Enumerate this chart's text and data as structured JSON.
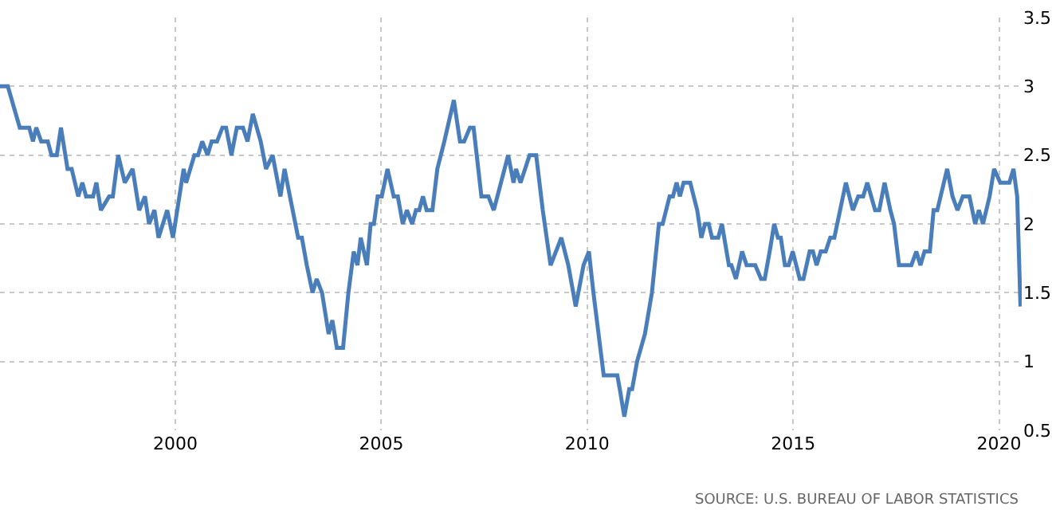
{
  "chart_data": {
    "type": "line",
    "x": [
      1995.74,
      1995.93,
      1996.22,
      1996.45,
      1996.54,
      1996.62,
      1996.74,
      1996.9,
      1996.99,
      1997.12,
      1997.22,
      1997.38,
      1997.48,
      1997.64,
      1997.74,
      1997.83,
      1998.0,
      1998.08,
      1998.19,
      1998.39,
      1998.48,
      1998.61,
      1998.77,
      1998.96,
      1999.12,
      1999.26,
      1999.36,
      1999.49,
      1999.59,
      1999.8,
      1999.94,
      2000.2,
      2000.26,
      2000.46,
      2000.55,
      2000.65,
      2000.78,
      2000.88,
      2001.01,
      2001.14,
      2001.23,
      2001.36,
      2001.49,
      2001.64,
      2001.75,
      2001.88,
      2002.07,
      2002.2,
      2002.36,
      2002.55,
      2002.65,
      2002.78,
      2002.98,
      2003.07,
      2003.19,
      2003.33,
      2003.43,
      2003.56,
      2003.72,
      2003.81,
      2003.92,
      2004.07,
      2004.2,
      2004.33,
      2004.42,
      2004.5,
      2004.65,
      2004.74,
      2004.82,
      2004.91,
      2005.01,
      2005.15,
      2005.3,
      2005.4,
      2005.52,
      2005.62,
      2005.75,
      2005.84,
      2005.92,
      2006.01,
      2006.1,
      2006.24,
      2006.36,
      2006.53,
      2006.76,
      2006.91,
      2007.01,
      2007.15,
      2007.24,
      2007.43,
      2007.6,
      2007.73,
      2008.08,
      2008.21,
      2008.27,
      2008.38,
      2008.6,
      2008.76,
      2008.92,
      2009.11,
      2009.24,
      2009.37,
      2009.54,
      2009.72,
      2009.91,
      2010.04,
      2010.15,
      2010.4,
      2010.73,
      2010.79,
      2010.9,
      2011.02,
      2011.09,
      2011.21,
      2011.4,
      2011.57,
      2011.74,
      2011.83,
      2012.0,
      2012.08,
      2012.17,
      2012.25,
      2012.34,
      2012.5,
      2012.67,
      2012.77,
      2012.86,
      2012.95,
      2013.03,
      2013.18,
      2013.27,
      2013.44,
      2013.5,
      2013.61,
      2013.76,
      2013.87,
      2014.08,
      2014.22,
      2014.31,
      2014.43,
      2014.54,
      2014.63,
      2014.7,
      2014.8,
      2014.89,
      2014.99,
      2015.16,
      2015.25,
      2015.4,
      2015.48,
      2015.57,
      2015.67,
      2015.79,
      2015.9,
      2016.0,
      2016.28,
      2016.45,
      2016.58,
      2016.7,
      2016.8,
      2016.99,
      2017.09,
      2017.22,
      2017.36,
      2017.45,
      2017.57,
      2017.87,
      2017.99,
      2018.09,
      2018.19,
      2018.32,
      2018.41,
      2018.5,
      2018.74,
      2018.87,
      2018.99,
      2019.12,
      2019.28,
      2019.42,
      2019.51,
      2019.61,
      2019.77,
      2019.88,
      2020.03,
      2020.25,
      2020.35,
      2020.44,
      2020.52
    ],
    "series": [
      {
        "color": "#4a7ebb",
        "values": [
          3.0,
          3.0,
          2.7,
          2.7,
          2.6,
          2.7,
          2.6,
          2.6,
          2.5,
          2.5,
          2.7,
          2.4,
          2.4,
          2.2,
          2.3,
          2.2,
          2.2,
          2.3,
          2.1,
          2.2,
          2.2,
          2.5,
          2.3,
          2.4,
          2.1,
          2.2,
          2.0,
          2.1,
          1.9,
          2.1,
          1.9,
          2.4,
          2.3,
          2.5,
          2.5,
          2.6,
          2.5,
          2.6,
          2.6,
          2.7,
          2.7,
          2.5,
          2.7,
          2.7,
          2.6,
          2.8,
          2.6,
          2.4,
          2.5,
          2.2,
          2.4,
          2.2,
          1.9,
          1.9,
          1.7,
          1.5,
          1.6,
          1.5,
          1.2,
          1.3,
          1.1,
          1.1,
          1.5,
          1.8,
          1.7,
          1.9,
          1.7,
          2.0,
          2.0,
          2.2,
          2.2,
          2.4,
          2.2,
          2.2,
          2.0,
          2.1,
          2.0,
          2.1,
          2.1,
          2.2,
          2.1,
          2.1,
          2.4,
          2.6,
          2.9,
          2.6,
          2.6,
          2.7,
          2.7,
          2.2,
          2.2,
          2.1,
          2.5,
          2.3,
          2.4,
          2.3,
          2.5,
          2.5,
          2.1,
          1.7,
          1.8,
          1.9,
          1.7,
          1.4,
          1.7,
          1.8,
          1.5,
          0.9,
          0.9,
          0.8,
          0.6,
          0.8,
          0.8,
          1.0,
          1.2,
          1.5,
          2.0,
          2.0,
          2.2,
          2.2,
          2.3,
          2.2,
          2.3,
          2.3,
          2.1,
          1.9,
          2.0,
          2.0,
          1.9,
          1.9,
          2.0,
          1.7,
          1.7,
          1.6,
          1.8,
          1.7,
          1.7,
          1.6,
          1.6,
          1.8,
          2.0,
          1.9,
          1.9,
          1.7,
          1.7,
          1.8,
          1.6,
          1.6,
          1.8,
          1.8,
          1.7,
          1.8,
          1.8,
          1.9,
          1.9,
          2.3,
          2.1,
          2.2,
          2.2,
          2.3,
          2.1,
          2.1,
          2.3,
          2.1,
          2.0,
          1.7,
          1.7,
          1.8,
          1.7,
          1.8,
          1.8,
          2.1,
          2.1,
          2.4,
          2.2,
          2.1,
          2.2,
          2.2,
          2.0,
          2.1,
          2.0,
          2.2,
          2.4,
          2.3,
          2.3,
          2.4,
          2.2,
          1.4
        ]
      }
    ],
    "xlim": [
      1995.74,
      2020.55
    ],
    "xticks": [
      2000,
      2005,
      2010,
      2015,
      2020
    ],
    "ylim": [
      0.5,
      3.5
    ],
    "yticks": [
      0.5,
      1,
      1.5,
      2,
      2.5,
      3,
      3.5
    ],
    "grid": true,
    "marker": "none",
    "line_style": "solid",
    "annotations": [
      "SOURCE: U.S. BUREAU OF LABOR STATISTICS"
    ]
  }
}
